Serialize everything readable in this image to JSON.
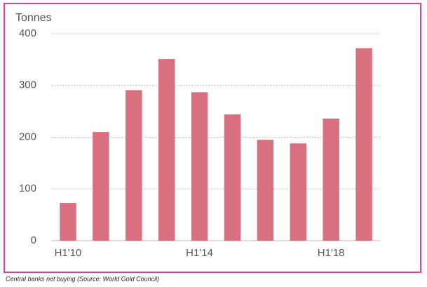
{
  "chart_data": {
    "type": "bar",
    "y_label": "Tonnes",
    "caption": "Central banks net buying (Source: World Gold Council)",
    "categories": [
      "H1'10",
      null,
      null,
      null,
      "H1'14",
      null,
      null,
      null,
      "H1'18",
      null
    ],
    "values": [
      73,
      210,
      291,
      351,
      287,
      244,
      195,
      188,
      236,
      372
    ],
    "color": "#d9707f",
    "ylim": [
      0,
      400
    ],
    "yticks": [
      0,
      100,
      200,
      300,
      400
    ],
    "grid": true
  }
}
